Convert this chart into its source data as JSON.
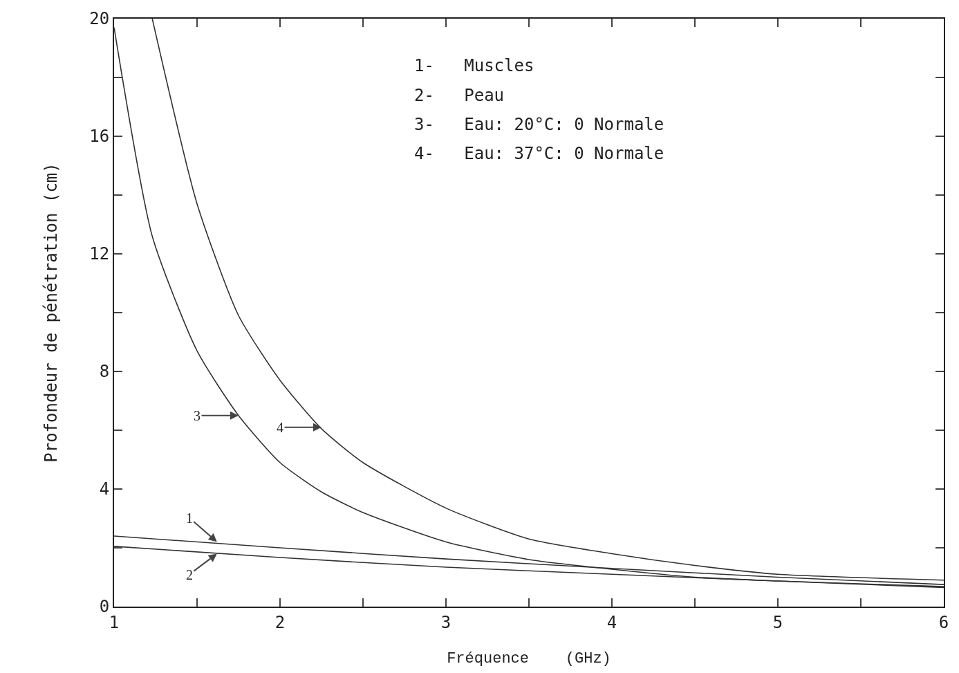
{
  "chart_data": {
    "type": "line",
    "xlabel": "Fréquence    (GHz)",
    "ylabel": "Profondeur de pénétration (cm)",
    "xlim": [
      1,
      6
    ],
    "ylim": [
      0,
      20
    ],
    "xticks": [
      1,
      {
        "value": 1.5,
        "label": null
      },
      2,
      {
        "value": 2.5,
        "label": null
      },
      3,
      {
        "value": 3.5,
        "label": null
      },
      4,
      {
        "value": 4.5,
        "label": null
      },
      5,
      {
        "value": 5.5,
        "label": null
      },
      6
    ],
    "yticks": [
      0,
      {
        "value": 2,
        "label": null
      },
      4,
      {
        "value": 6,
        "label": null
      },
      8,
      {
        "value": 10,
        "label": null
      },
      12,
      {
        "value": 14,
        "label": null
      },
      16,
      {
        "value": 18,
        "label": null
      },
      20
    ],
    "grid": false,
    "marker": "none",
    "line_style": "solid",
    "series": [
      {
        "color": "#333333",
        "x": [
          1,
          2,
          3,
          4,
          5,
          6
        ],
        "values": [
          2.4,
          2.0,
          1.62,
          1.3,
          1.0,
          0.75
        ]
      },
      {
        "color": "#333333",
        "x": [
          1,
          2,
          3,
          4,
          5,
          6
        ],
        "values": [
          2.05,
          1.67,
          1.34,
          1.1,
          0.87,
          0.68
        ]
      },
      {
        "color": "#333333",
        "x": [
          1,
          1.23,
          1.5,
          1.75,
          2,
          2.25,
          2.5,
          3,
          3.5,
          4,
          4.5,
          5,
          6
        ],
        "values": [
          19.7,
          12.6,
          8.7,
          6.5,
          4.9,
          3.9,
          3.2,
          2.2,
          1.6,
          1.27,
          1.0,
          0.87,
          0.65
        ]
      },
      {
        "color": "#333333",
        "x": [
          1.23,
          1.5,
          1.75,
          2,
          2.25,
          2.5,
          3,
          3.5,
          4,
          4.5,
          5,
          6
        ],
        "values": [
          20,
          13.7,
          9.9,
          7.7,
          6.05,
          4.9,
          3.35,
          2.3,
          1.8,
          1.4,
          1.1,
          0.9
        ]
      }
    ],
    "annotations": [
      "1-   Muscles",
      "2-   Peau",
      "3-   Eau: 20°C: 0 Normale",
      "4-   Eau: 37°C: 0 Normale",
      {
        "text": "3",
        "x": 1.75,
        "y": 6.5
      },
      {
        "text": "4",
        "x": 2.25,
        "y": 6.1
      },
      {
        "text": "1",
        "x": 1.62,
        "y": 2.2
      },
      {
        "text": "2",
        "x": 1.62,
        "y": 1.8
      }
    ]
  }
}
